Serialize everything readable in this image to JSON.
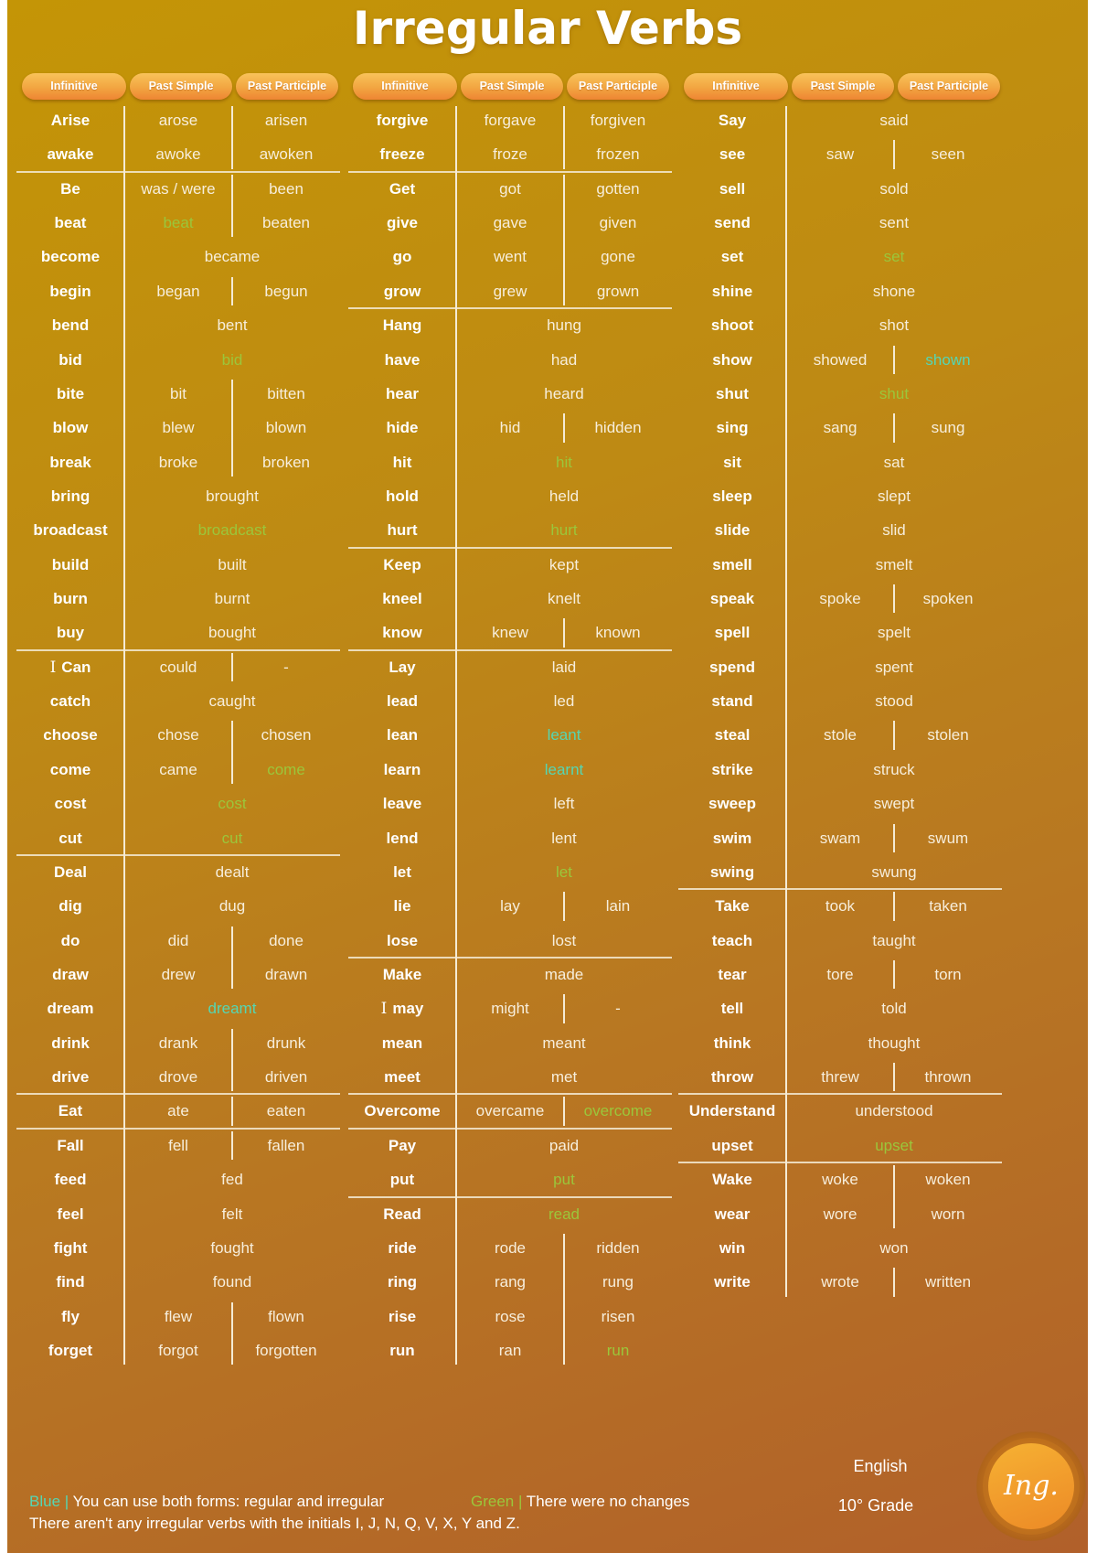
{
  "title": "Irregular Verbs",
  "headers": [
    "Infinitive",
    "Past Simple",
    "Past Participle"
  ],
  "colors": {
    "blue": "#55D6B3",
    "green": "#9BC63B",
    "background_top": "#C49506",
    "background_bottom": "#B1602A",
    "pill": "#F2A541"
  },
  "columns": [
    {
      "rows": [
        {
          "inf": "Arise",
          "ps": "arose",
          "pp": "arisen"
        },
        {
          "inf": "awake",
          "ps": "awoke",
          "pp": "awoken",
          "sep_after": true
        },
        {
          "inf": "Be",
          "ps": "was / were",
          "pp": "been"
        },
        {
          "inf": "beat",
          "ps": "beat",
          "pp": "beaten",
          "ps_color": "green"
        },
        {
          "inf": "become",
          "both": "became"
        },
        {
          "inf": "begin",
          "ps": "began",
          "pp": "begun"
        },
        {
          "inf": "bend",
          "both": "bent"
        },
        {
          "inf": "bid",
          "both": "bid",
          "both_color": "green"
        },
        {
          "inf": "bite",
          "ps": "bit",
          "pp": "bitten"
        },
        {
          "inf": "blow",
          "ps": "blew",
          "pp": "blown"
        },
        {
          "inf": "break",
          "ps": "broke",
          "pp": "broken"
        },
        {
          "inf": "bring",
          "both": "brought"
        },
        {
          "inf": "broadcast",
          "both": "broadcast",
          "both_color": "green"
        },
        {
          "inf": "build",
          "both": "built"
        },
        {
          "inf": "burn",
          "both": "burnt"
        },
        {
          "inf": "buy",
          "both": "bought",
          "sep_after": true
        },
        {
          "inf": "Can",
          "prefix": "I",
          "ps": "could",
          "pp": "-"
        },
        {
          "inf": "catch",
          "both": "caught"
        },
        {
          "inf": "choose",
          "ps": "chose",
          "pp": "chosen"
        },
        {
          "inf": "come",
          "ps": "came",
          "pp": "come",
          "pp_color": "green"
        },
        {
          "inf": "cost",
          "both": "cost",
          "both_color": "green"
        },
        {
          "inf": "cut",
          "both": "cut",
          "both_color": "green",
          "sep_after": true
        },
        {
          "inf": "Deal",
          "both": "dealt"
        },
        {
          "inf": "dig",
          "both": "dug"
        },
        {
          "inf": "do",
          "ps": "did",
          "pp": "done"
        },
        {
          "inf": "draw",
          "ps": "drew",
          "pp": "drawn"
        },
        {
          "inf": "dream",
          "both": "dreamt",
          "both_color": "blue"
        },
        {
          "inf": "drink",
          "ps": "drank",
          "pp": "drunk"
        },
        {
          "inf": "drive",
          "ps": "drove",
          "pp": "driven",
          "sep_after": true
        },
        {
          "inf": "Eat",
          "ps": "ate",
          "pp": "eaten",
          "sep_after": true
        },
        {
          "inf": "Fall",
          "ps": "fell",
          "pp": "fallen"
        },
        {
          "inf": "feed",
          "both": "fed"
        },
        {
          "inf": "feel",
          "both": "felt"
        },
        {
          "inf": "fight",
          "both": "fought"
        },
        {
          "inf": "find",
          "both": "found"
        },
        {
          "inf": "fly",
          "ps": "flew",
          "pp": "flown"
        },
        {
          "inf": "forget",
          "ps": "forgot",
          "pp": "forgotten"
        }
      ]
    },
    {
      "rows": [
        {
          "inf": "forgive",
          "ps": "forgave",
          "pp": "forgiven"
        },
        {
          "inf": "freeze",
          "ps": "froze",
          "pp": "frozen",
          "sep_after": true
        },
        {
          "inf": "Get",
          "ps": "got",
          "pp": "gotten"
        },
        {
          "inf": "give",
          "ps": "gave",
          "pp": "given"
        },
        {
          "inf": "go",
          "ps": "went",
          "pp": "gone"
        },
        {
          "inf": "grow",
          "ps": "grew",
          "pp": "grown",
          "sep_after": true
        },
        {
          "inf": "Hang",
          "both": "hung"
        },
        {
          "inf": "have",
          "both": "had"
        },
        {
          "inf": "hear",
          "both": "heard"
        },
        {
          "inf": "hide",
          "ps": "hid",
          "pp": "hidden"
        },
        {
          "inf": "hit",
          "both": "hit",
          "both_color": "green"
        },
        {
          "inf": "hold",
          "both": "held"
        },
        {
          "inf": "hurt",
          "both": "hurt",
          "both_color": "green",
          "sep_after": true
        },
        {
          "inf": "Keep",
          "both": "kept"
        },
        {
          "inf": "kneel",
          "both": "knelt"
        },
        {
          "inf": "know",
          "ps": "knew",
          "pp": "known",
          "sep_after": true
        },
        {
          "inf": "Lay",
          "both": "laid"
        },
        {
          "inf": "lead",
          "both": "led"
        },
        {
          "inf": "lean",
          "both": "leant",
          "both_color": "blue"
        },
        {
          "inf": "learn",
          "both": "learnt",
          "both_color": "blue"
        },
        {
          "inf": "leave",
          "both": "left"
        },
        {
          "inf": "lend",
          "both": "lent"
        },
        {
          "inf": "let",
          "both": "let",
          "both_color": "green"
        },
        {
          "inf": "lie",
          "ps": "lay",
          "pp": "lain"
        },
        {
          "inf": "lose",
          "both": "lost",
          "sep_after": true
        },
        {
          "inf": "Make",
          "both": "made"
        },
        {
          "inf": "may",
          "prefix": "I",
          "ps": "might",
          "pp": "-"
        },
        {
          "inf": "mean",
          "both": "meant"
        },
        {
          "inf": "meet",
          "both": "met",
          "sep_after": true
        },
        {
          "inf": "Overcome",
          "ps": "overcame",
          "pp": "overcome",
          "pp_color": "green",
          "sep_after": true
        },
        {
          "inf": "Pay",
          "both": "paid"
        },
        {
          "inf": "put",
          "both": "put",
          "both_color": "green",
          "sep_after": true
        },
        {
          "inf": "Read",
          "both": "read",
          "both_color": "green"
        },
        {
          "inf": "ride",
          "ps": "rode",
          "pp": "ridden"
        },
        {
          "inf": "ring",
          "ps": "rang",
          "pp": "rung"
        },
        {
          "inf": "rise",
          "ps": "rose",
          "pp": "risen"
        },
        {
          "inf": "run",
          "ps": "ran",
          "pp": "run",
          "pp_color": "green"
        }
      ]
    },
    {
      "rows": [
        {
          "inf": "Say",
          "both": "said"
        },
        {
          "inf": "see",
          "ps": "saw",
          "pp": "seen"
        },
        {
          "inf": "sell",
          "both": "sold"
        },
        {
          "inf": "send",
          "both": "sent"
        },
        {
          "inf": "set",
          "both": "set",
          "both_color": "green"
        },
        {
          "inf": "shine",
          "both": "shone"
        },
        {
          "inf": "shoot",
          "both": "shot"
        },
        {
          "inf": "show",
          "ps": "showed",
          "pp": "shown",
          "pp_color": "blue"
        },
        {
          "inf": "shut",
          "both": "shut",
          "both_color": "green"
        },
        {
          "inf": "sing",
          "ps": "sang",
          "pp": "sung"
        },
        {
          "inf": "sit",
          "both": "sat"
        },
        {
          "inf": "sleep",
          "both": "slept"
        },
        {
          "inf": "slide",
          "both": "slid"
        },
        {
          "inf": "smell",
          "both": "smelt"
        },
        {
          "inf": "speak",
          "ps": "spoke",
          "pp": "spoken"
        },
        {
          "inf": "spell",
          "both": "spelt"
        },
        {
          "inf": "spend",
          "both": "spent"
        },
        {
          "inf": "stand",
          "both": "stood"
        },
        {
          "inf": "steal",
          "ps": "stole",
          "pp": "stolen"
        },
        {
          "inf": "strike",
          "both": "struck"
        },
        {
          "inf": "sweep",
          "both": "swept"
        },
        {
          "inf": "swim",
          "ps": "swam",
          "pp": "swum"
        },
        {
          "inf": "swing",
          "both": "swung",
          "sep_after": true
        },
        {
          "inf": "Take",
          "ps": "took",
          "pp": "taken"
        },
        {
          "inf": "teach",
          "both": "taught"
        },
        {
          "inf": "tear",
          "ps": "tore",
          "pp": "torn"
        },
        {
          "inf": "tell",
          "both": "told"
        },
        {
          "inf": "think",
          "both": "thought"
        },
        {
          "inf": "throw",
          "ps": "threw",
          "pp": "thrown",
          "sep_after": true
        },
        {
          "inf": "Understand",
          "both": "understood"
        },
        {
          "inf": "upset",
          "both": "upset",
          "both_color": "green",
          "sep_after": true
        },
        {
          "inf": "Wake",
          "ps": "woke",
          "pp": "woken"
        },
        {
          "inf": "wear",
          "ps": "wore",
          "pp": "worn"
        },
        {
          "inf": "win",
          "both": "won"
        },
        {
          "inf": "write",
          "ps": "wrote",
          "pp": "written"
        }
      ]
    }
  ],
  "legend": {
    "blue_label": "Blue |",
    "blue_text": " You can use both forms: regular and irregular",
    "green_label": "Green |",
    "green_text": " There were no changes",
    "note": "There aren't any irregular verbs with the initials I, J, N, Q, V, X, Y and Z."
  },
  "footer": {
    "subject": "English",
    "grade": "10° Grade",
    "badge": "Ing."
  }
}
